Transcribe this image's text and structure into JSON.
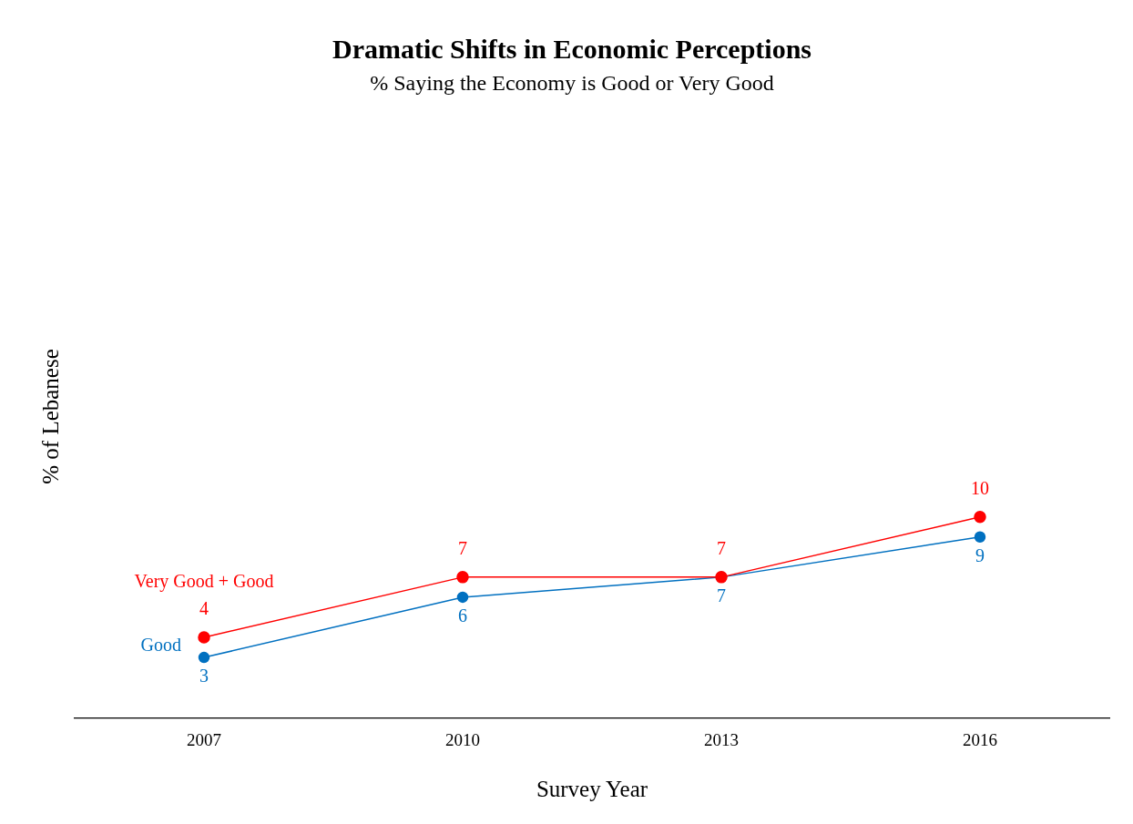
{
  "chart_data": {
    "type": "line",
    "title": "Dramatic Shifts in Economic Perceptions",
    "subtitle": "% Saying the Economy is Good or Very Good",
    "xlabel": "Survey Year",
    "ylabel": "% of Lebanese",
    "categories": [
      "2007",
      "2010",
      "2013",
      "2016"
    ],
    "series": [
      {
        "name": "Very Good + Good",
        "color": "#ff0000",
        "values": [
          4,
          7,
          7,
          10
        ]
      },
      {
        "name": "Good",
        "color": "#0070c0",
        "values": [
          3,
          6,
          7,
          9
        ]
      }
    ],
    "tick_labels": "x",
    "data_labels": true,
    "legend": false,
    "grid": false,
    "marker": "circle",
    "line_style": "solid"
  }
}
